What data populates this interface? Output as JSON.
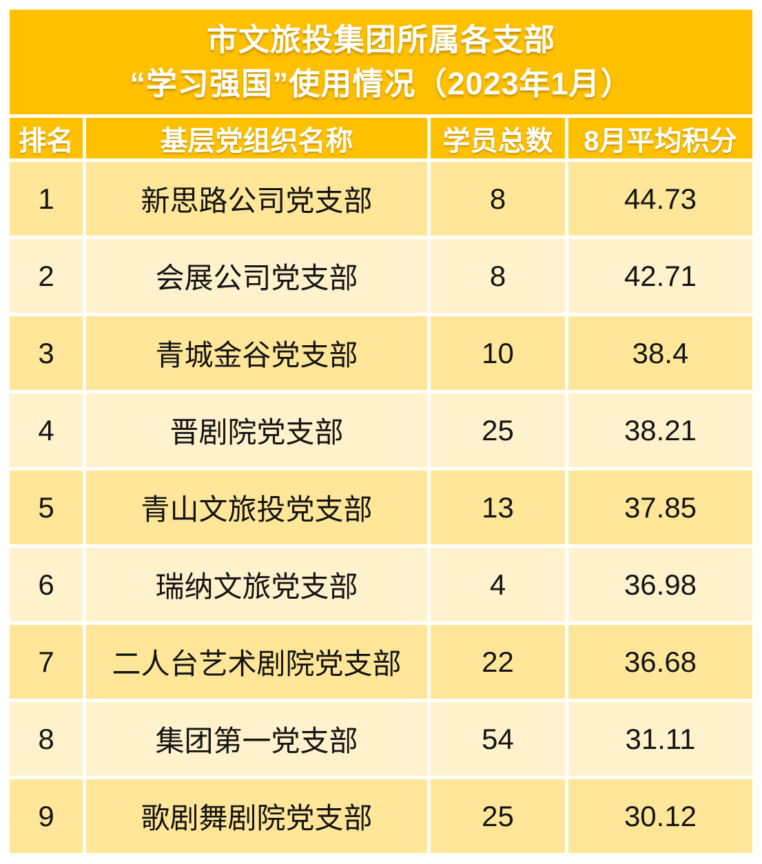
{
  "colors": {
    "accent": "#FFC000",
    "row_odd": "#FFE699",
    "row_even": "#FFF2CC",
    "header_text": "#FFFFFF",
    "body_text": "#141414",
    "page_background": "#FFFFFF"
  },
  "title": {
    "line1": "市文旅投集团所属各支部",
    "line2": "“学习强国”使用情况（2023年1月）"
  },
  "table": {
    "columns": [
      "排名",
      "基层党组织名称",
      "学员总数",
      "8月平均积分"
    ],
    "rows": [
      {
        "rank": "1",
        "name": "新思路公司党支部",
        "students": "8",
        "score": "44.73"
      },
      {
        "rank": "2",
        "name": "会展公司党支部",
        "students": "8",
        "score": "42.71"
      },
      {
        "rank": "3",
        "name": "青城金谷党支部",
        "students": "10",
        "score": "38.4"
      },
      {
        "rank": "4",
        "name": "晋剧院党支部",
        "students": "25",
        "score": "38.21"
      },
      {
        "rank": "5",
        "name": "青山文旅投党支部",
        "students": "13",
        "score": "37.85"
      },
      {
        "rank": "6",
        "name": "瑞纳文旅党支部",
        "students": "4",
        "score": "36.98"
      },
      {
        "rank": "7",
        "name": "二人台艺术剧院党支部",
        "students": "22",
        "score": "36.68"
      },
      {
        "rank": "8",
        "name": "集团第一党支部",
        "students": "54",
        "score": "31.11"
      },
      {
        "rank": "9",
        "name": "歌剧舞剧院党支部",
        "students": "25",
        "score": "30.12"
      }
    ]
  },
  "chart_data": {
    "type": "table",
    "title": "市文旅投集团所属各支部“学习强国”使用情况（2023年1月）",
    "columns": [
      "排名",
      "基层党组织名称",
      "学员总数",
      "8月平均积分"
    ],
    "rows": [
      [
        1,
        "新思路公司党支部",
        8,
        44.73
      ],
      [
        2,
        "会展公司党支部",
        8,
        42.71
      ],
      [
        3,
        "青城金谷党支部",
        10,
        38.4
      ],
      [
        4,
        "晋剧院党支部",
        25,
        38.21
      ],
      [
        5,
        "青山文旅投党支部",
        13,
        37.85
      ],
      [
        6,
        "瑞纳文旅党支部",
        4,
        36.98
      ],
      [
        7,
        "二人台艺术剧院党支部",
        22,
        36.68
      ],
      [
        8,
        "集团第一党支部",
        54,
        31.11
      ],
      [
        9,
        "歌剧舞剧院党支部",
        25,
        30.12
      ]
    ],
    "notes": "Ranked leaderboard table; rank 1 highest average score 44.73, rank 9 lowest 30.12."
  }
}
